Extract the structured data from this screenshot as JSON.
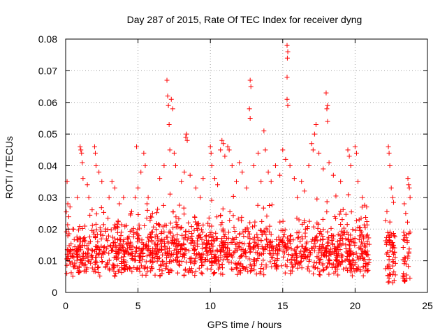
{
  "chart_data": {
    "type": "scatter",
    "title": "Day 287 of 2015, Rate Of TEC Index for receiver dyng",
    "xlabel": "GPS time / hours",
    "ylabel": "ROTI / TECUs",
    "xlim": [
      0,
      25
    ],
    "ylim": [
      0,
      0.08
    ],
    "x_ticks": [
      0,
      5,
      10,
      15,
      20,
      25
    ],
    "x_tick_labels": [
      "0",
      "5",
      "10",
      "15",
      "20",
      "25"
    ],
    "y_ticks": [
      0,
      0.01,
      0.02,
      0.03,
      0.04,
      0.05,
      0.06,
      0.07,
      0.08
    ],
    "y_tick_labels": [
      "0",
      "0.01",
      "0.02",
      "0.03",
      "0.04",
      "0.05",
      "0.06",
      "0.07",
      "0.08"
    ],
    "grid": true,
    "marker": "+",
    "marker_color": "#ff0000",
    "data_gaps_hours": [
      [
        21.0,
        22.1
      ],
      [
        22.8,
        23.3
      ]
    ],
    "series": [
      {
        "points": [
          [
            0.1,
            0.035
          ],
          [
            0.15,
            0.028
          ],
          [
            0.3,
            0.027
          ],
          [
            0.5,
            0.02
          ],
          [
            0.8,
            0.03
          ],
          [
            1.0,
            0.046
          ],
          [
            1.05,
            0.045
          ],
          [
            1.1,
            0.044
          ],
          [
            1.15,
            0.041
          ],
          [
            1.2,
            0.036
          ],
          [
            1.5,
            0.034
          ],
          [
            1.6,
            0.03
          ],
          [
            2.0,
            0.046
          ],
          [
            2.05,
            0.044
          ],
          [
            2.1,
            0.04
          ],
          [
            2.3,
            0.038
          ],
          [
            2.5,
            0.035
          ],
          [
            3.0,
            0.03
          ],
          [
            3.2,
            0.035
          ],
          [
            3.4,
            0.033
          ],
          [
            4.0,
            0.03
          ],
          [
            4.5,
            0.025
          ],
          [
            4.8,
            0.03
          ],
          [
            4.9,
            0.046
          ],
          [
            5.0,
            0.033
          ],
          [
            5.2,
            0.038
          ],
          [
            5.4,
            0.044
          ],
          [
            5.5,
            0.04
          ],
          [
            5.7,
            0.03
          ],
          [
            6.0,
            0.025
          ],
          [
            6.5,
            0.036
          ],
          [
            6.8,
            0.04
          ],
          [
            7.0,
            0.067
          ],
          [
            7.05,
            0.062
          ],
          [
            7.1,
            0.059
          ],
          [
            7.15,
            0.053
          ],
          [
            7.2,
            0.045
          ],
          [
            7.3,
            0.061
          ],
          [
            7.4,
            0.058
          ],
          [
            7.5,
            0.044
          ],
          [
            7.6,
            0.04
          ],
          [
            8.0,
            0.035
          ],
          [
            8.2,
            0.038
          ],
          [
            8.3,
            0.049
          ],
          [
            8.35,
            0.05
          ],
          [
            8.4,
            0.048
          ],
          [
            8.6,
            0.037
          ],
          [
            9.0,
            0.033
          ],
          [
            9.3,
            0.03
          ],
          [
            9.5,
            0.036
          ],
          [
            10.0,
            0.046
          ],
          [
            10.05,
            0.044
          ],
          [
            10.1,
            0.04
          ],
          [
            10.3,
            0.036
          ],
          [
            10.5,
            0.034
          ],
          [
            10.7,
            0.045
          ],
          [
            10.8,
            0.048
          ],
          [
            10.9,
            0.047
          ],
          [
            11.0,
            0.043
          ],
          [
            11.2,
            0.046
          ],
          [
            11.3,
            0.045
          ],
          [
            11.5,
            0.04
          ],
          [
            11.8,
            0.035
          ],
          [
            12.0,
            0.041
          ],
          [
            12.2,
            0.038
          ],
          [
            12.5,
            0.033
          ],
          [
            12.75,
            0.067
          ],
          [
            12.8,
            0.065
          ],
          [
            12.7,
            0.058
          ],
          [
            12.75,
            0.055
          ],
          [
            13.0,
            0.04
          ],
          [
            13.3,
            0.044
          ],
          [
            13.5,
            0.035
          ],
          [
            13.7,
            0.051
          ],
          [
            13.8,
            0.045
          ],
          [
            14.0,
            0.038
          ],
          [
            14.2,
            0.035
          ],
          [
            14.5,
            0.04
          ],
          [
            14.8,
            0.037
          ],
          [
            15.0,
            0.045
          ],
          [
            15.2,
            0.042
          ],
          [
            15.3,
            0.078
          ],
          [
            15.35,
            0.076
          ],
          [
            15.32,
            0.074
          ],
          [
            15.3,
            0.068
          ],
          [
            15.3,
            0.061
          ],
          [
            15.35,
            0.059
          ],
          [
            15.5,
            0.04
          ],
          [
            15.8,
            0.036
          ],
          [
            16.0,
            0.03
          ],
          [
            16.3,
            0.035
          ],
          [
            16.5,
            0.032
          ],
          [
            16.8,
            0.04
          ],
          [
            17.0,
            0.047
          ],
          [
            17.1,
            0.045
          ],
          [
            17.2,
            0.05
          ],
          [
            17.3,
            0.053
          ],
          [
            17.5,
            0.044
          ],
          [
            17.8,
            0.039
          ],
          [
            18.0,
            0.063
          ],
          [
            18.1,
            0.059
          ],
          [
            18.05,
            0.058
          ],
          [
            18.1,
            0.054
          ],
          [
            18.2,
            0.041
          ],
          [
            18.5,
            0.037
          ],
          [
            19.0,
            0.035
          ],
          [
            19.5,
            0.045
          ],
          [
            19.6,
            0.043
          ],
          [
            19.7,
            0.04
          ],
          [
            20.0,
            0.046
          ],
          [
            20.1,
            0.044
          ],
          [
            20.2,
            0.035
          ],
          [
            20.5,
            0.03
          ],
          [
            20.8,
            0.027
          ],
          [
            22.3,
            0.046
          ],
          [
            22.35,
            0.044
          ],
          [
            22.4,
            0.04
          ],
          [
            22.5,
            0.033
          ],
          [
            22.6,
            0.03
          ],
          [
            23.4,
            0.028
          ],
          [
            23.5,
            0.025
          ],
          [
            23.65,
            0.036
          ],
          [
            23.7,
            0.034
          ],
          [
            23.75,
            0.033
          ],
          [
            23.8,
            0.03
          ]
        ]
      }
    ]
  }
}
